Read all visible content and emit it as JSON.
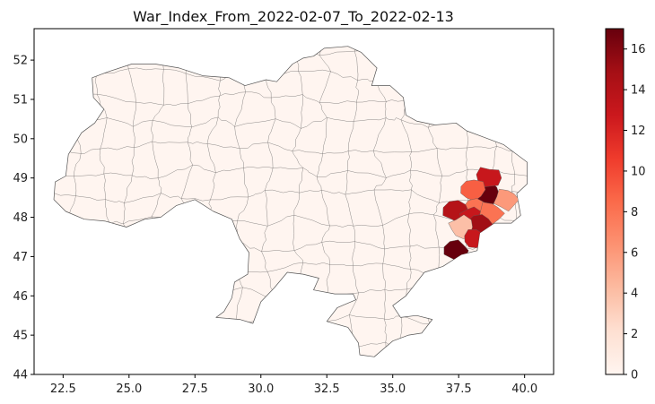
{
  "chart_data": {
    "type": "choropleth",
    "title": "War_Index_From_2022-02-07_To_2022-02-13",
    "xlabel": "",
    "ylabel": "",
    "xlim": [
      21.4,
      41.1
    ],
    "ylim": [
      44.0,
      52.8
    ],
    "x_ticks": [
      "22.5",
      "25.0",
      "27.5",
      "30.0",
      "32.5",
      "35.0",
      "37.5",
      "40.0"
    ],
    "y_ticks": [
      "44",
      "45",
      "46",
      "47",
      "48",
      "49",
      "50",
      "51",
      "52"
    ],
    "grid": false,
    "colormap": "Reds",
    "colorbar": {
      "min": 0,
      "max": 17,
      "ticks": [
        "0",
        "2",
        "4",
        "6",
        "8",
        "10",
        "12",
        "14",
        "16"
      ],
      "colors": [
        "#fff5f0",
        "#fee0d2",
        "#fcbba1",
        "#fc9272",
        "#fb6a4a",
        "#ef3b2c",
        "#cb181d",
        "#a50f15",
        "#67000d"
      ]
    },
    "base_color": "#fff5f0",
    "boundary_color": "#444444",
    "highlighted_regions": [
      {
        "lon": 38.6,
        "lat": 48.6,
        "value": 17
      },
      {
        "lon": 38.6,
        "lat": 49.0,
        "value": 13
      },
      {
        "lon": 39.3,
        "lat": 48.45,
        "value": 6
      },
      {
        "lon": 38.0,
        "lat": 48.7,
        "value": 9
      },
      {
        "lon": 38.1,
        "lat": 48.2,
        "value": 8
      },
      {
        "lon": 37.4,
        "lat": 48.15,
        "value": 14
      },
      {
        "lon": 38.0,
        "lat": 48.0,
        "value": 13
      },
      {
        "lon": 38.7,
        "lat": 48.1,
        "value": 8
      },
      {
        "lon": 38.3,
        "lat": 47.8,
        "value": 15
      },
      {
        "lon": 37.6,
        "lat": 47.75,
        "value": 4
      },
      {
        "lon": 38.1,
        "lat": 47.45,
        "value": 13
      },
      {
        "lon": 37.4,
        "lat": 47.15,
        "value": 17
      }
    ]
  }
}
